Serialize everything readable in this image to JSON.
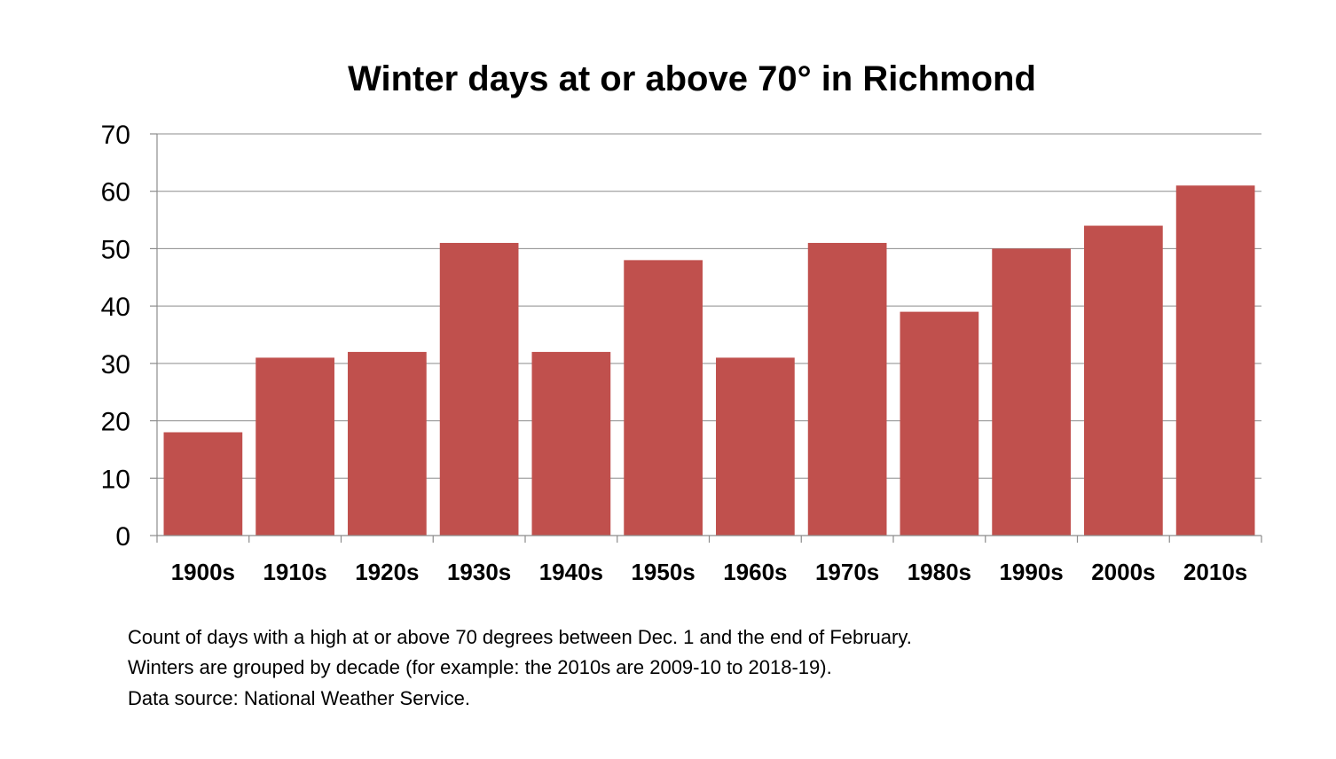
{
  "chart_data": {
    "type": "bar",
    "title": "Winter days at or above 70° in Richmond",
    "xlabel": "",
    "ylabel": "",
    "categories": [
      "1900s",
      "1910s",
      "1920s",
      "1930s",
      "1940s",
      "1950s",
      "1960s",
      "1970s",
      "1980s",
      "1990s",
      "2000s",
      "2010s"
    ],
    "values": [
      18,
      31,
      32,
      51,
      32,
      48,
      31,
      51,
      39,
      50,
      54,
      61
    ],
    "ylim": [
      0,
      70
    ],
    "yticks": [
      "0",
      "10",
      "20",
      "30",
      "40",
      "50",
      "60",
      "70"
    ],
    "grid": true,
    "legend": "none",
    "bar_color": "#c0504d",
    "notes": [
      "Count of days with a high at or above 70 degrees between Dec. 1 and the end of February.",
      "Winters are grouped by decade (for example: the 2010s are 2009-10 to 2018-19).",
      "Data source: National  Weather Service."
    ]
  }
}
